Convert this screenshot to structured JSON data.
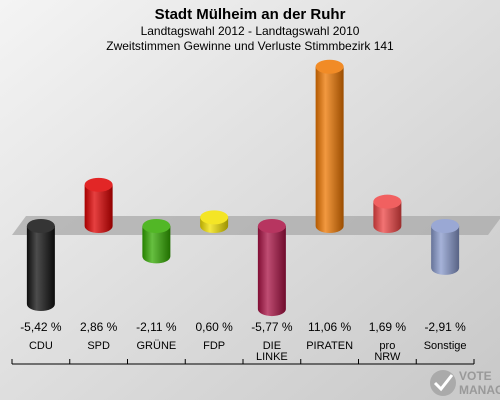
{
  "header": {
    "title": "Stadt Mülheim an der Ruhr",
    "subtitle1": "Landtagswahl 2012 - Landtagswahl 2010",
    "subtitle2": "Zweitstimmen Gewinne und Verluste Stimmbezirk 141"
  },
  "chart_data": {
    "type": "bar",
    "title": "Stadt Mülheim an der Ruhr",
    "subtitle": "Landtagswahl 2012 - Landtagswahl 2010 / Zweitstimmen Gewinne und Verluste Stimmbezirk 141",
    "categories": [
      [
        "CDU"
      ],
      [
        "SPD"
      ],
      [
        "GRÜNE"
      ],
      [
        "FDP"
      ],
      [
        "DIE",
        "LINKE"
      ],
      [
        "PIRATEN"
      ],
      [
        "pro",
        "NRW"
      ],
      [
        "Sonstige"
      ]
    ],
    "values": [
      -5.42,
      2.86,
      -2.11,
      0.6,
      -5.77,
      11.06,
      1.69,
      -2.91
    ],
    "value_labels": [
      "-5,42 %",
      "2,86 %",
      "-2,11 %",
      "0,60 %",
      "-5,77 %",
      "11,06 %",
      "1,69 %",
      "-2,91 %"
    ],
    "colors": [
      "#111111",
      "#dd0000",
      "#33aa00",
      "#f2e000",
      "#aa1144",
      "#ee7700",
      "#ee4444",
      "#8899cc"
    ],
    "xlabel": "",
    "ylabel": "",
    "ylim": [
      -6.5,
      11.5
    ]
  },
  "brand": {
    "text_line1": "VOTE",
    "text_line2": "MANAGER",
    "icon": "checkmark-logo-icon"
  }
}
